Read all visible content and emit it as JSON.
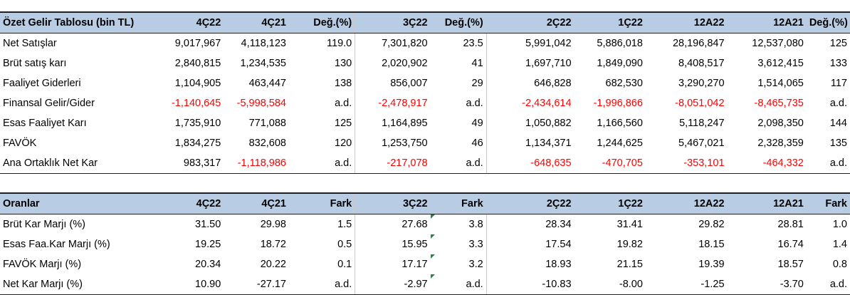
{
  "summary": {
    "headers": [
      "Özet Gelir Tablosu (bin TL)",
      "4Ç22",
      "4Ç21",
      "Değ.(%)",
      "3Ç22",
      "Değ.(%)",
      "2Ç22",
      "1Ç22",
      "12A22",
      "12A21",
      "Değ.(%)"
    ],
    "rows": [
      [
        "Net Satışlar",
        "9,017,967",
        "4,118,123",
        "119.0",
        "7,301,820",
        "23.5",
        "5,991,042",
        "5,886,018",
        "28,196,847",
        "12,537,080",
        "125"
      ],
      [
        "Brüt satış karı",
        "2,840,815",
        "1,234,535",
        "130",
        "2,020,902",
        "41",
        "1,697,710",
        "1,849,090",
        "8,408,517",
        "3,612,415",
        "133"
      ],
      [
        "Faaliyet Giderleri",
        "1,104,905",
        "463,447",
        "138",
        "856,007",
        "29",
        "646,828",
        "682,530",
        "3,290,270",
        "1,514,065",
        "117"
      ],
      [
        "Finansal Gelir/Gider",
        "-1,140,645",
        "-5,998,584",
        "a.d.",
        "-2,478,917",
        "a.d.",
        "-2,434,614",
        "-1,996,866",
        "-8,051,042",
        "-8,465,735",
        "a.d."
      ],
      [
        "Esas Faaliyet Karı",
        "1,735,910",
        "771,088",
        "125",
        "1,164,895",
        "49",
        "1,050,882",
        "1,166,560",
        "5,118,247",
        "2,098,350",
        "144"
      ],
      [
        "FAVÖK",
        "1,834,275",
        "832,608",
        "120",
        "1,253,750",
        "46",
        "1,134,371",
        "1,244,625",
        "5,467,021",
        "2,328,359",
        "135"
      ],
      [
        "Ana Ortaklık Net Kar",
        "983,317",
        "-1,118,986",
        "a.d.",
        "-217,078",
        "a.d.",
        "-648,635",
        "-470,705",
        "-353,101",
        "-464,332",
        "a.d."
      ]
    ]
  },
  "ratios": {
    "headers": [
      "Oranlar",
      "4Ç22",
      "4Ç21",
      "Fark",
      "3Ç22",
      "Fark",
      "2Ç22",
      "1Ç22",
      "12A22",
      "12A21",
      "Fark"
    ],
    "rows": [
      [
        "Brüt Kar Marjı (%)",
        "31.50",
        "29.98",
        "1.5",
        "27.68",
        "3.8",
        "28.34",
        "31.41",
        "29.82",
        "28.81",
        "1.0"
      ],
      [
        "Esas Faa.Kar Marjı (%)",
        "19.25",
        "18.72",
        "0.5",
        "15.95",
        "3.3",
        "17.54",
        "19.82",
        "18.15",
        "16.74",
        "1.4"
      ],
      [
        "FAVÖK Marjı (%)",
        "20.34",
        "20.22",
        "0.1",
        "17.17",
        "3.2",
        "18.93",
        "21.15",
        "19.39",
        "18.57",
        "0.8"
      ],
      [
        "Net Kar Marjı (%)",
        "10.90",
        "-27.17",
        "a.d.",
        "-2.97",
        "a.d.",
        "-10.83",
        "-8.00",
        "-1.25",
        "-3.70",
        "a.d."
      ]
    ]
  },
  "colors": {
    "header_bg": "#b8cce4",
    "negative": "#ff0000",
    "comment_marker": "#1e8c3a"
  }
}
